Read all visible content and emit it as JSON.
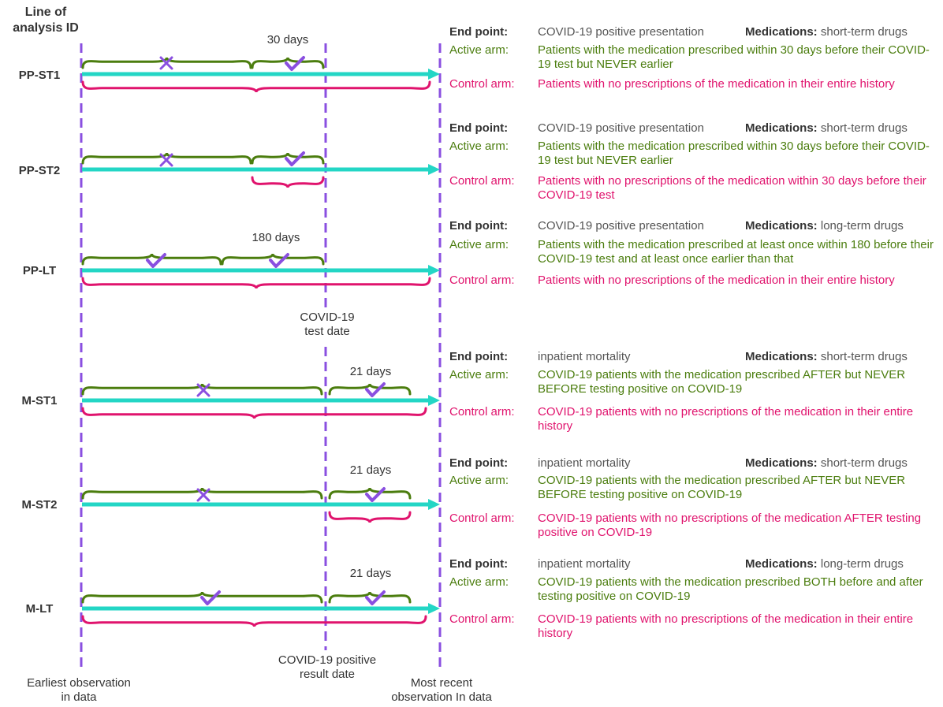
{
  "header": {
    "line1": "Line of",
    "line2": "analysis ID"
  },
  "bottom_labels": {
    "earliest_line1": "Earliest observation",
    "earliest_line2": "in data",
    "covid_result_line1": "COVID-19 positive",
    "covid_result_line2": "result date",
    "recent_line1": "Most recent",
    "recent_line2": "observation In data"
  },
  "test_date_label": {
    "line1": "COVID-19",
    "line2": "test date"
  },
  "field_labels": {
    "end_point": "End point:",
    "active_arm": "Active arm:",
    "control_arm": "Control arm:",
    "medications": "Medications:"
  },
  "colors": {
    "guide_line": "#8a4fe0",
    "timeline": "#23d6c5",
    "active_brace": "#4b7d0e",
    "control_brace": "#e0136d",
    "mark": "#8a4fe0"
  },
  "analyses": [
    {
      "id": "PP-ST1",
      "end_point": "COVID-19 positive presentation",
      "medications": "short-term drugs",
      "active": "Patients with the medication prescribed within 30 days before their COVID-19 test but NEVER earlier",
      "control": "Patients with no prescriptions of the medication in their entire history",
      "window_label": "30 days"
    },
    {
      "id": "PP-ST2",
      "end_point": "COVID-19 positive presentation",
      "medications": "short-term drugs",
      "active": "Patients with the medication prescribed within 30 days before their COVID-19 test but NEVER earlier",
      "control": "Patients with no prescriptions of the medication within 30 days before their COVID-19 test",
      "window_label": ""
    },
    {
      "id": "PP-LT",
      "end_point": "COVID-19 positive presentation",
      "medications": "long-term drugs",
      "active": "Patients with the medication prescribed at least once within 180 before their COVID-19 test and at least once earlier than that",
      "control": "Patients with no prescriptions of the medication in their entire history",
      "window_label": "180 days"
    },
    {
      "id": "M-ST1",
      "end_point": "inpatient mortality",
      "medications": "short-term drugs",
      "active": "COVID-19 patients with the medication prescribed AFTER but NEVER BEFORE testing positive on COVID-19",
      "control": "COVID-19 patients with no prescriptions of the medication in their entire history",
      "window_label": "21 days"
    },
    {
      "id": "M-ST2",
      "end_point": "inpatient mortality",
      "medications": "short-term drugs",
      "active": "COVID-19 patients with the medication prescribed AFTER but NEVER BEFORE testing positive on COVID-19",
      "control": "COVID-19 patients with no prescriptions of the medication AFTER testing positive on COVID-19",
      "window_label": "21 days"
    },
    {
      "id": "M-LT",
      "end_point": "inpatient mortality",
      "medications": "long-term drugs",
      "active": "COVID-19 patients with the medication prescribed BOTH before and after testing positive on COVID-19",
      "control": "COVID-19 patients with no prescriptions of the medication in their entire history",
      "window_label": "21 days"
    }
  ]
}
